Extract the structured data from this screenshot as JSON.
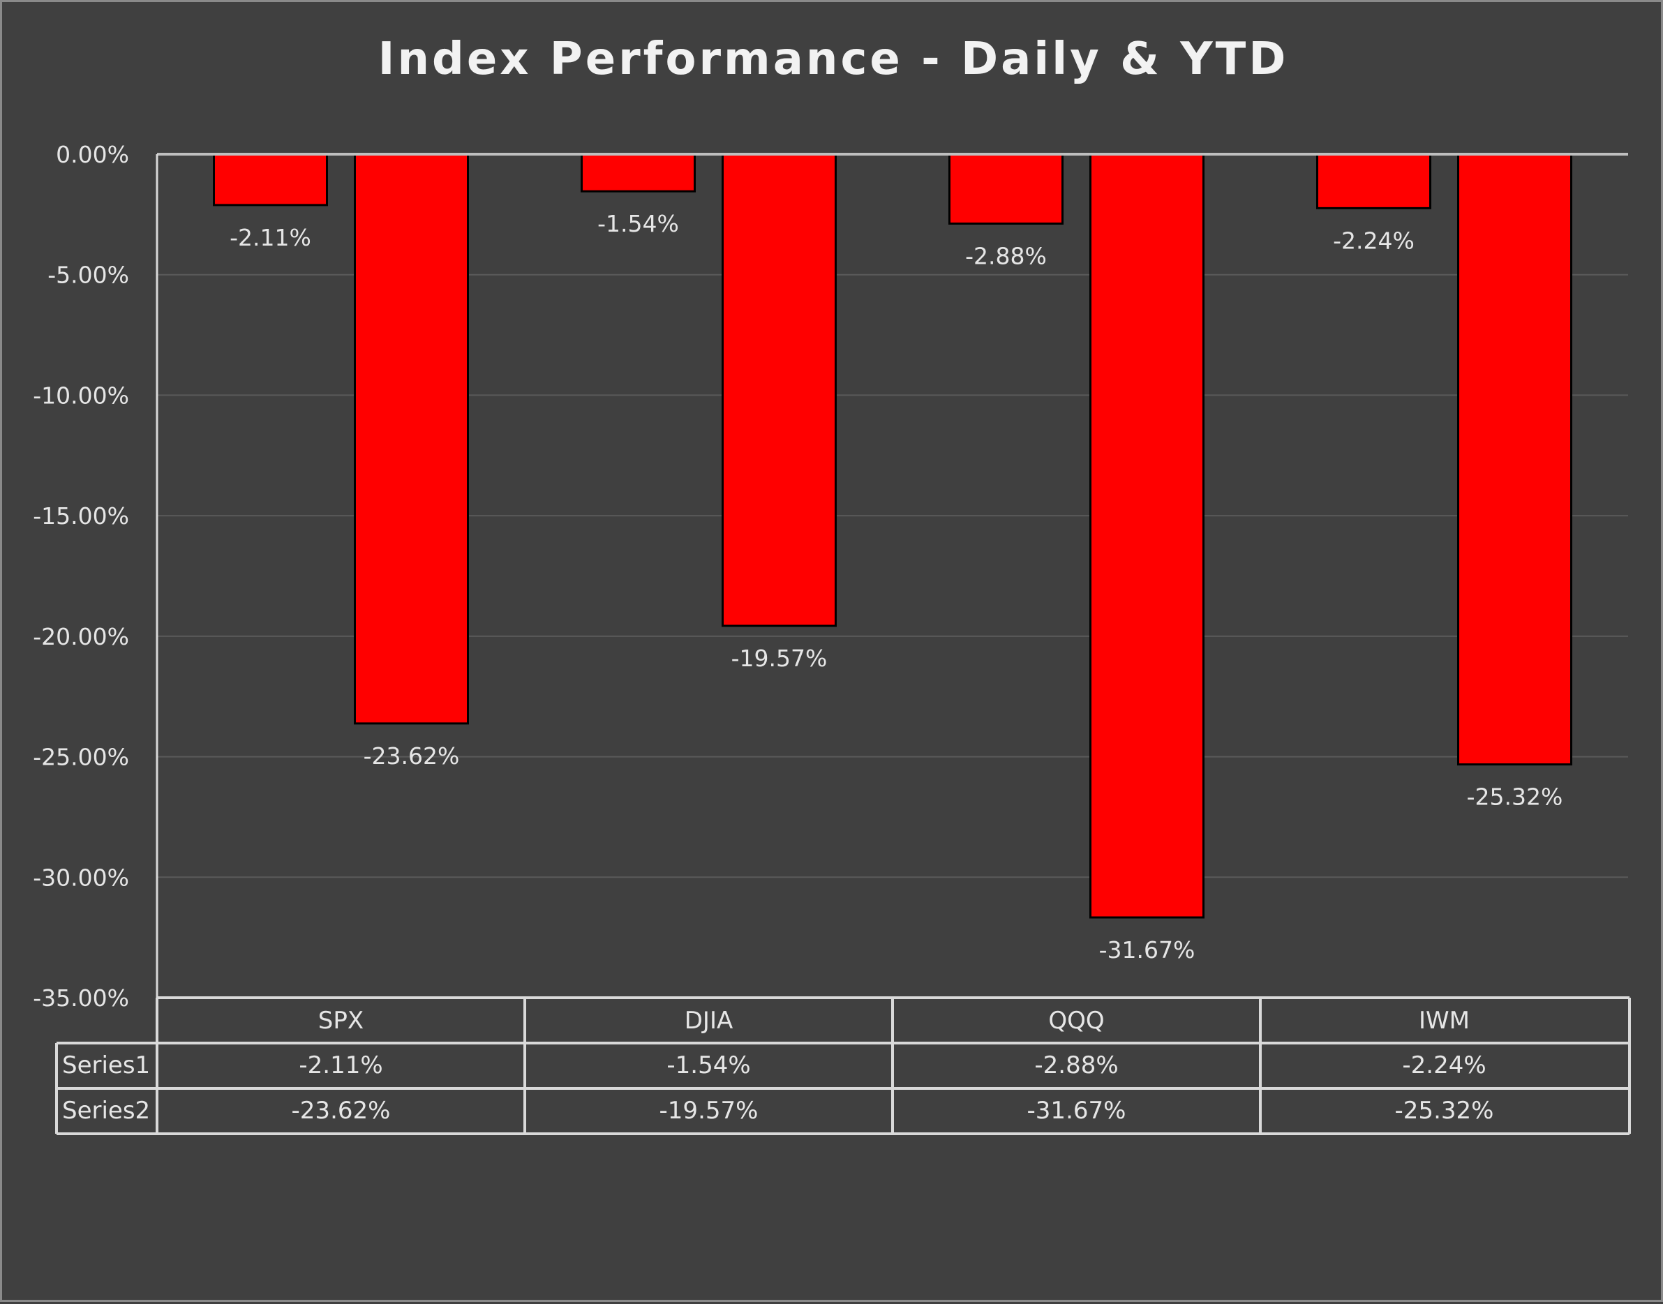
{
  "chart_data": {
    "type": "bar",
    "title": "Index Performance - Daily & YTD",
    "categories": [
      "SPX",
      "DJIA",
      "QQQ",
      "IWM"
    ],
    "series": [
      {
        "name": "Series1",
        "values": [
          -2.11,
          -1.54,
          -2.88,
          -2.24
        ],
        "labels": [
          "-2.11%",
          "-1.54%",
          "-2.88%",
          "-2.24%"
        ]
      },
      {
        "name": "Series2",
        "values": [
          -23.62,
          -19.57,
          -31.67,
          -25.32
        ],
        "labels": [
          "-23.62%",
          "-19.57%",
          "-31.67%",
          "-25.32%"
        ]
      }
    ],
    "ylim": [
      -35,
      0
    ],
    "yticks": [
      0,
      -5,
      -10,
      -15,
      -20,
      -25,
      -30,
      -35
    ],
    "ytick_labels": [
      "0.00%",
      "-5.00%",
      "-10.00%",
      "-15.00%",
      "-20.00%",
      "-25.00%",
      "-30.00%",
      "-35.00%"
    ],
    "grid": true,
    "data_table": true,
    "colors": {
      "background": "#404040",
      "bar_fill": "#ff0000",
      "bar_stroke": "#000000",
      "text": "#e6e6e6",
      "gridline": "#5a5a5a",
      "axis": "#d9d9d9"
    }
  }
}
